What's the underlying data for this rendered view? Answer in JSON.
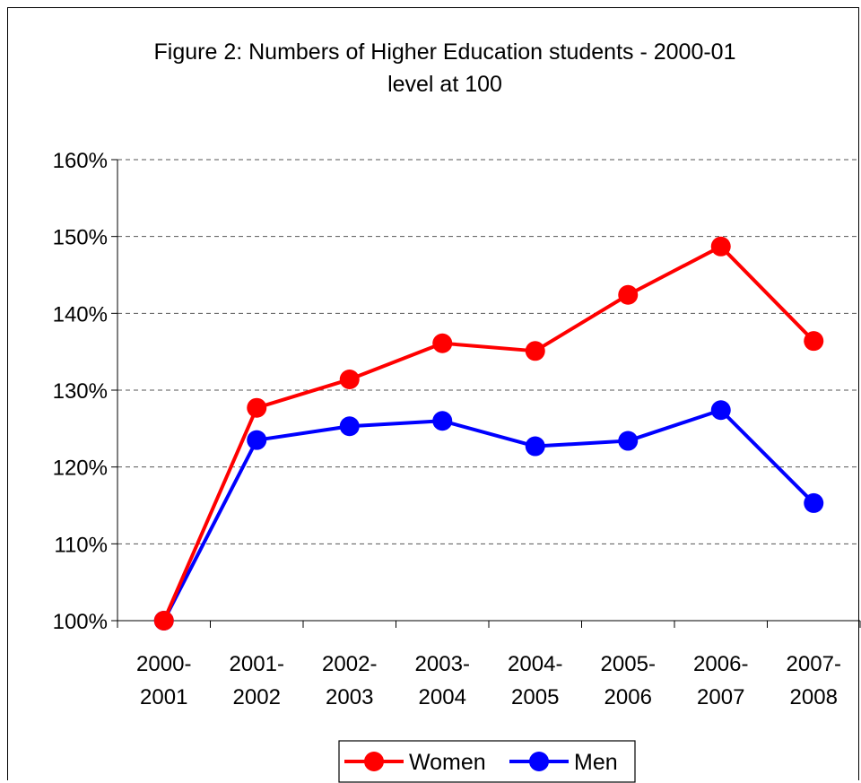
{
  "chart_data": {
    "type": "line",
    "title_line1": "Figure  2: Numbers of Higher Education students - 2000-01",
    "title_line2": "level at 100",
    "categories": [
      {
        "line1": "2000-",
        "line2": "2001"
      },
      {
        "line1": "2001-",
        "line2": "2002"
      },
      {
        "line1": "2002-",
        "line2": "2003"
      },
      {
        "line1": "2003-",
        "line2": "2004"
      },
      {
        "line1": "2004-",
        "line2": "2005"
      },
      {
        "line1": "2005-",
        "line2": "2006"
      },
      {
        "line1": "2006-",
        "line2": "2007"
      },
      {
        "line1": "2007-",
        "line2": "2008"
      }
    ],
    "ylim": [
      100,
      160
    ],
    "yticks": [
      100,
      110,
      120,
      130,
      140,
      150,
      160
    ],
    "ytick_labels": [
      "100%",
      "110%",
      "120%",
      "130%",
      "140%",
      "150%",
      "160%"
    ],
    "grid": "horizontal dashed",
    "legend_position": "bottom",
    "series": [
      {
        "name": "Women",
        "color": "#ff0000",
        "values": [
          100,
          127.7,
          131.4,
          136.1,
          135.1,
          142.4,
          148.7,
          136.4
        ]
      },
      {
        "name": "Men",
        "color": "#0000ff",
        "values": [
          100,
          123.5,
          125.3,
          126.0,
          122.7,
          123.4,
          127.4,
          115.3
        ]
      }
    ]
  }
}
